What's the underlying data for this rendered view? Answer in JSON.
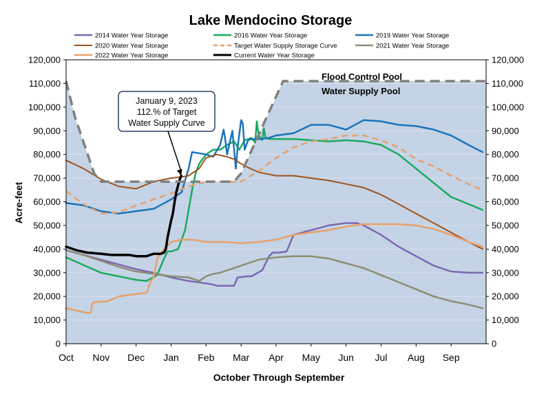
{
  "chart_data": {
    "type": "line",
    "title": "Lake Mendocino Storage",
    "xlabel": "October Through September",
    "ylabel": "Acre-feet",
    "x_ticks": [
      "Oct",
      "Nov",
      "Dec",
      "Jan",
      "Feb",
      "Mar",
      "Apr",
      "May",
      "Jun",
      "Jul",
      "Aug",
      "Sep"
    ],
    "y_ticks": [
      "0",
      "10,000",
      "20,000",
      "30,000",
      "40,000",
      "50,000",
      "60,000",
      "70,000",
      "80,000",
      "90,000",
      "100,000",
      "110,000",
      "120,000"
    ],
    "xlim": [
      0,
      12
    ],
    "ylim": [
      0,
      120000
    ],
    "pool_labels": {
      "flood": "Flood Control Pool",
      "water": "Water Supply Pool"
    },
    "annotation": {
      "lines": [
        "January 9, 2023",
        "112.% of Target",
        "Water Supply Curve"
      ],
      "x": 3.29,
      "y": 71000
    },
    "flood_control_curve": {
      "x": [
        0,
        0.25,
        0.8,
        1.0,
        4.0,
        4.8,
        5.0,
        6.2,
        12
      ],
      "y": [
        111000,
        96000,
        72000,
        68500,
        68500,
        68500,
        72000,
        111000,
        111000
      ],
      "fill_color": "#c4d3e6",
      "line_color": "#808080"
    },
    "series": [
      {
        "name": "2014 Water Year Storage",
        "color": "#7B68B0",
        "dash": false,
        "width": 2.5,
        "x": [
          0,
          1,
          2,
          2.5,
          3,
          3.5,
          4,
          4.2,
          4.3,
          4.8,
          4.9,
          5.2,
          5.3,
          5.6,
          5.8,
          5.9,
          6.1,
          6.3,
          6.5,
          7,
          7.5,
          8,
          8.3,
          8.5,
          9,
          9.5,
          10,
          10.5,
          11,
          11.5,
          11.9
        ],
        "y": [
          39500,
          35500,
          31500,
          30000,
          28000,
          26500,
          25500,
          25000,
          24500,
          24500,
          28000,
          28500,
          28500,
          31000,
          37000,
          38500,
          38500,
          39000,
          46000,
          48000,
          50000,
          51000,
          51000,
          50000,
          46000,
          41000,
          37000,
          33000,
          30500,
          30000,
          30000
        ]
      },
      {
        "name": "2016 Water Year Storage",
        "color": "#1AAA5E",
        "dash": false,
        "width": 2.5,
        "x": [
          0,
          1,
          2,
          2.3,
          2.6,
          2.8,
          2.9,
          3.0,
          3.2,
          3.4,
          3.6,
          3.7,
          3.8,
          4.0,
          4.2,
          4.4,
          4.6,
          4.8,
          4.95,
          5.1,
          5.3,
          5.4,
          5.45,
          5.5,
          5.6,
          5.65,
          5.7,
          5.8,
          6,
          6.5,
          7,
          7.5,
          8,
          8.5,
          9,
          9.5,
          10,
          10.5,
          11,
          11.5,
          11.9
        ],
        "y": [
          36500,
          30000,
          27000,
          26500,
          29000,
          36000,
          39000,
          39000,
          40000,
          48000,
          65000,
          72000,
          76000,
          80000,
          82000,
          82000,
          84000,
          85500,
          82000,
          86000,
          87000,
          85000,
          94000,
          88000,
          86000,
          91000,
          87000,
          86500,
          86500,
          86500,
          86000,
          85500,
          86000,
          85500,
          84000,
          80000,
          74000,
          68000,
          62000,
          59000,
          56500
        ]
      },
      {
        "name": "2019 Water Year Storage",
        "color": "#1B73BB",
        "dash": false,
        "width": 2.5,
        "x": [
          0,
          0.5,
          1,
          1.5,
          2,
          2.5,
          3,
          3.3,
          3.5,
          3.6,
          4,
          4.2,
          4.4,
          4.5,
          4.55,
          4.6,
          4.75,
          4.85,
          4.9,
          5.0,
          5.05,
          5.1,
          5.2,
          5.3,
          5.5,
          5.8,
          6,
          6.5,
          7,
          7.5,
          8,
          8.5,
          9,
          9.5,
          10,
          10.5,
          11,
          11.5,
          11.9
        ],
        "y": [
          59500,
          58500,
          56000,
          55000,
          56000,
          57000,
          61000,
          64000,
          74000,
          81000,
          80000,
          79000,
          84000,
          90500,
          86000,
          80000,
          90000,
          74000,
          83000,
          94500,
          93000,
          82000,
          86000,
          86500,
          86500,
          87000,
          88000,
          89000,
          92500,
          92500,
          90500,
          94500,
          94000,
          92500,
          92000,
          90500,
          88000,
          84000,
          81000
        ]
      },
      {
        "name": "2020 Water Year Storage",
        "color": "#A0521A",
        "dash": false,
        "width": 2,
        "x": [
          0,
          0.5,
          1,
          1.5,
          2,
          2.5,
          3,
          3.3,
          3.5,
          3.8,
          4,
          4.3,
          4.6,
          4.8,
          5,
          5.2,
          5.5,
          6,
          6.5,
          7,
          7.5,
          8,
          8.5,
          9,
          9.5,
          10,
          10.5,
          11,
          11.5,
          11.9
        ],
        "y": [
          77500,
          74000,
          69500,
          66500,
          65500,
          68500,
          70000,
          70500,
          71000,
          74000,
          78500,
          80000,
          79000,
          78000,
          76000,
          74500,
          72500,
          71000,
          71000,
          70000,
          69000,
          67500,
          66000,
          63000,
          59000,
          55000,
          51000,
          47000,
          43000,
          40000
        ]
      },
      {
        "name": "Target Water Supply Storage Curve",
        "color": "#E8A06A",
        "dash": true,
        "width": 2.5,
        "x": [
          0,
          0.5,
          1,
          1.5,
          2,
          2.5,
          3,
          3.5,
          4,
          4.5,
          5,
          5.5,
          6,
          6.5,
          7,
          7.5,
          8,
          8.5,
          9,
          9.5,
          10,
          10.5,
          11,
          11.5,
          11.9
        ],
        "y": [
          64500,
          59000,
          55000,
          55500,
          58500,
          61000,
          63500,
          66500,
          68500,
          68500,
          68500,
          73000,
          78500,
          83000,
          85500,
          86500,
          88000,
          88000,
          86000,
          83000,
          78000,
          75000,
          71000,
          67500,
          65000
        ]
      },
      {
        "name": "2021 Water Year Storage",
        "color": "#8C8C72",
        "dash": false,
        "width": 2.5,
        "x": [
          0,
          0.5,
          1,
          1.5,
          2,
          2.5,
          3,
          3.5,
          3.8,
          3.9,
          4.0,
          4.2,
          4.4,
          4.5,
          4.8,
          5,
          5.2,
          5.5,
          6,
          6.5,
          7,
          7.5,
          8,
          8.5,
          9,
          9.5,
          10,
          10.5,
          11,
          11.5,
          11.9
        ],
        "y": [
          39500,
          37500,
          35000,
          32500,
          30500,
          29500,
          28500,
          28000,
          26500,
          27500,
          28500,
          29500,
          30000,
          30500,
          32000,
          33000,
          34000,
          35500,
          36500,
          37000,
          37000,
          36000,
          34000,
          32000,
          29000,
          26000,
          23000,
          20000,
          18000,
          16500,
          15000
        ]
      },
      {
        "name": "2022 Water Year Storage",
        "color": "#E8A06A",
        "dash": false,
        "width": 2.5,
        "x": [
          0,
          0.3,
          0.6,
          0.7,
          0.75,
          0.8,
          1.2,
          1.5,
          2,
          2.3,
          2.4,
          2.5,
          2.6,
          2.8,
          3.0,
          3.3,
          3.6,
          4,
          4.5,
          5,
          5.5,
          6,
          6.5,
          7,
          7.5,
          8,
          8.5,
          9,
          9.5,
          10,
          10.5,
          11,
          11.5,
          11.9
        ],
        "y": [
          15000,
          14000,
          13000,
          13000,
          17000,
          17500,
          18000,
          20000,
          21000,
          21500,
          26000,
          28000,
          36000,
          40000,
          43000,
          44000,
          44000,
          43000,
          43000,
          42500,
          43000,
          44000,
          46000,
          47000,
          48000,
          49500,
          50500,
          50500,
          50500,
          50000,
          48500,
          46000,
          43000,
          41000
        ]
      },
      {
        "name": "Current Water Year Storage",
        "color": "#000000",
        "dash": false,
        "width": 3.5,
        "x": [
          0,
          0.3,
          0.6,
          1,
          1.3,
          1.5,
          1.7,
          1.8,
          2,
          2.3,
          2.5,
          2.7,
          2.8,
          2.85,
          2.9,
          3.0,
          3.05,
          3.1,
          3.15,
          3.2,
          3.25,
          3.29
        ],
        "y": [
          41000,
          39500,
          38500,
          38000,
          37500,
          37500,
          37500,
          37500,
          37000,
          37000,
          38000,
          38000,
          38500,
          40000,
          45000,
          52000,
          55000,
          60000,
          64000,
          67000,
          69500,
          71000
        ]
      }
    ]
  }
}
